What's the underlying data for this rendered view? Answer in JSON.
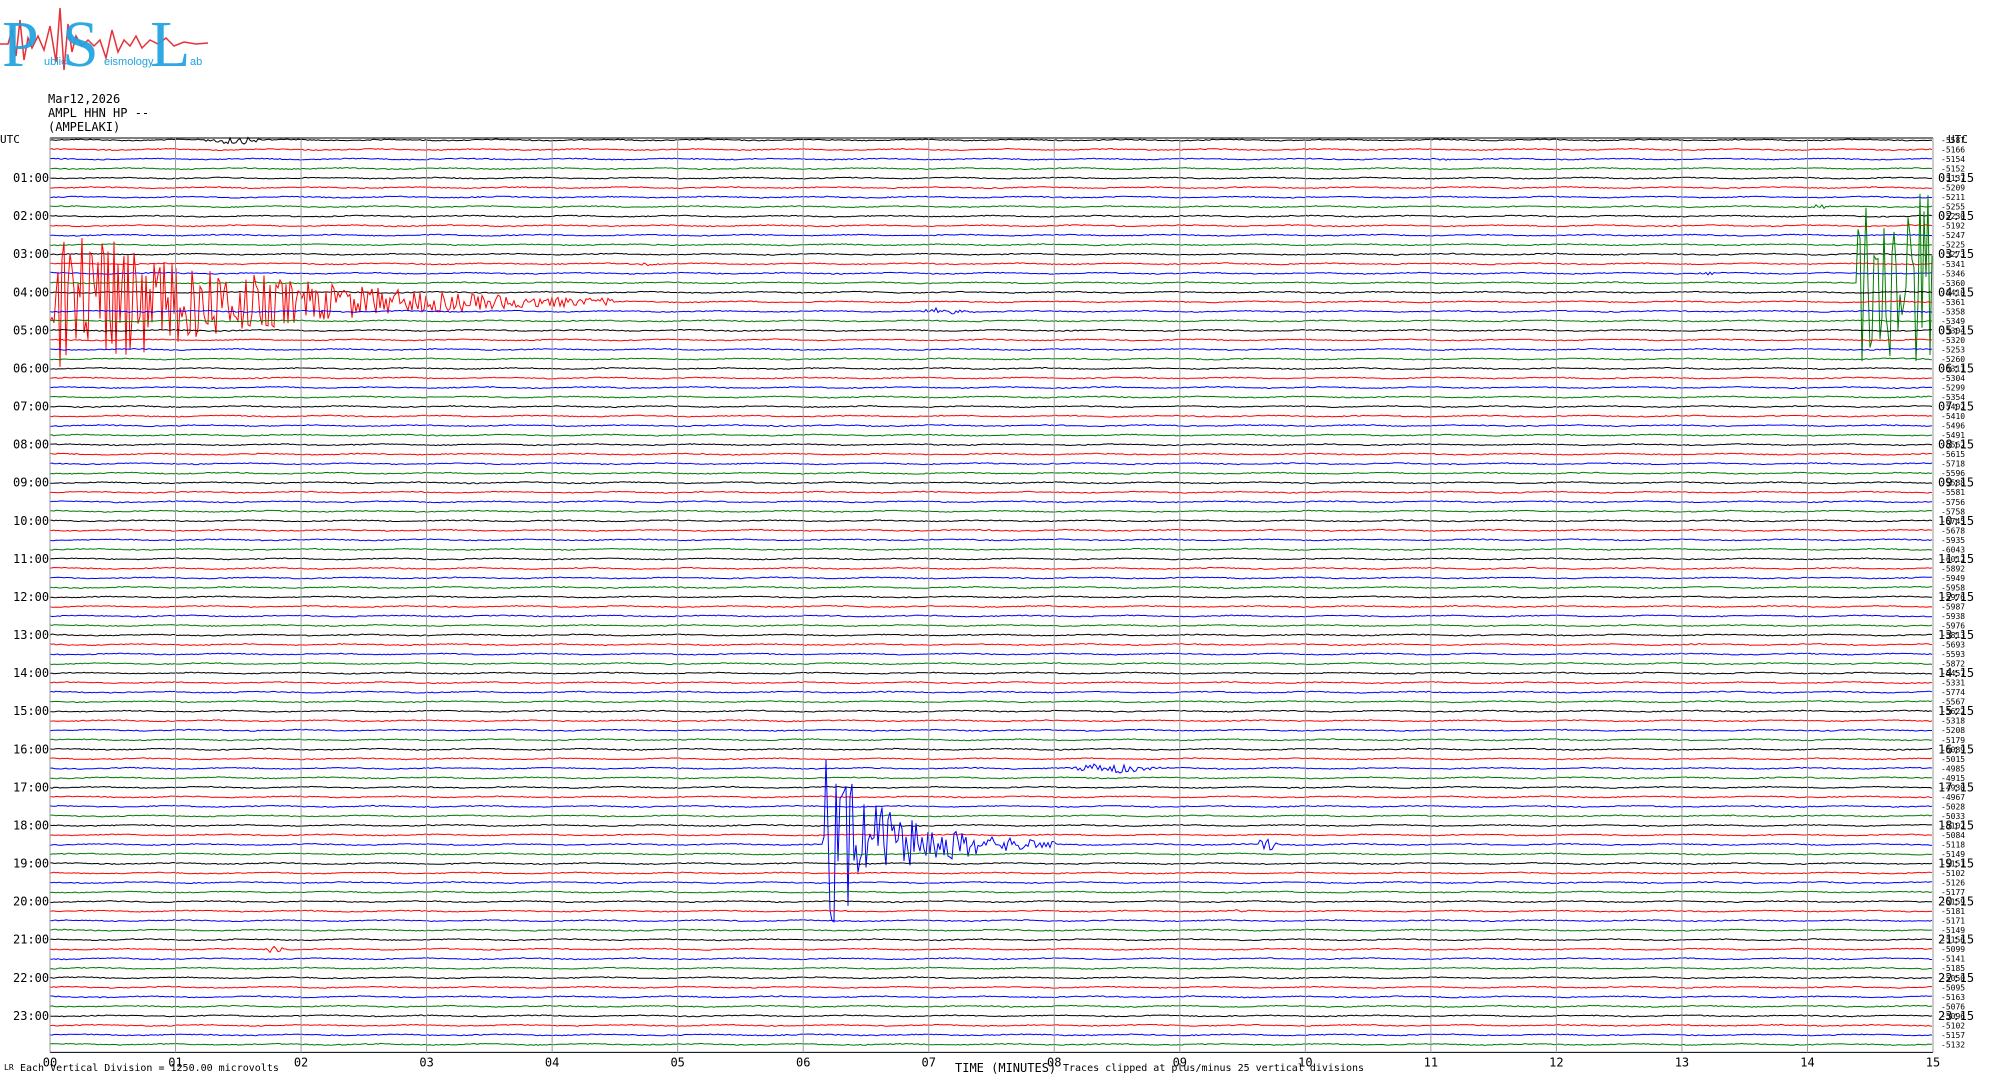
{
  "logo": {
    "big_letters": [
      "P",
      "S",
      "L"
    ],
    "small_words": [
      "ublic",
      "eismology",
      "ab"
    ],
    "colors": {
      "letters": "#1fa2e0",
      "wave": "#e8303a"
    }
  },
  "header": {
    "date": "Mar12,2026",
    "station": "AMPL HHN HP --",
    "site": "(AMPELAKI)"
  },
  "footer": {
    "scale_note": "Each Vertical Division = 1250.00 microvolts",
    "clip_note": "Traces clipped at plus/minus 25 vertical divisions",
    "corner_mark": "LR"
  },
  "chart_data": {
    "type": "line",
    "xlabel": "TIME (MINUTES)",
    "xlim": [
      0,
      15
    ],
    "x_ticks": [
      "00",
      "01",
      "02",
      "03",
      "04",
      "05",
      "06",
      "07",
      "08",
      "09",
      "10",
      "11",
      "12",
      "13",
      "14",
      "15"
    ],
    "left_axis_title": "UTC",
    "right_axis_title": "UTC",
    "left_hour_labels": [
      "01:00",
      "02:00",
      "03:00",
      "04:00",
      "05:00",
      "06:00",
      "07:00",
      "08:00",
      "09:00",
      "10:00",
      "11:00",
      "12:00",
      "13:00",
      "14:00",
      "15:00",
      "16:00",
      "17:00",
      "18:00",
      "19:00",
      "20:00",
      "21:00",
      "22:00",
      "23:00"
    ],
    "right_hour_labels": [
      "01:15",
      "02:15",
      "03:15",
      "04:15",
      "05:15",
      "06:15",
      "07:15",
      "08:15",
      "09:15",
      "10:15",
      "11:15",
      "12:15",
      "13:15",
      "14:15",
      "15:15",
      "16:15",
      "17:15",
      "18:15",
      "19:15",
      "20:15",
      "21:15",
      "22:15",
      "23:15"
    ],
    "trace_colors": [
      "#000000",
      "#ff0000",
      "#0000ff",
      "#007a00"
    ],
    "trace_offsets": [
      "-5587",
      "-5166",
      "-5154",
      "-5152",
      "-5137",
      "-5209",
      "-5211",
      "-5255",
      "-5230",
      "-5192",
      "-5247",
      "-5225",
      "-5273",
      "-5341",
      "-5346",
      "-5360",
      "-5410",
      "-5361",
      "-5358",
      "-5349",
      "-5304",
      "-5320",
      "-5253",
      "-5260",
      "-5311",
      "-5304",
      "-5299",
      "-5354",
      "-5402",
      "-5410",
      "-5496",
      "-5491",
      "-5562",
      "-5615",
      "-5718",
      "-5596",
      "-5588",
      "-5581",
      "-5756",
      "-5758",
      "-5745",
      "-5678",
      "-5935",
      "-6043",
      "-6012",
      "-5892",
      "-5949",
      "-5958",
      "-5976",
      "-5987",
      "-5938",
      "-5976",
      "-5813",
      "-5693",
      "-5593",
      "-5872",
      "-5457",
      "-5331",
      "-5774",
      "-5567",
      "-5622",
      "-5318",
      "-5208",
      "-5179",
      "-5089",
      "-5015",
      "-4985",
      "-4915",
      "-4930",
      "-4967",
      "-5028",
      "-5033",
      "-5102",
      "-5084",
      "-5118",
      "-5149",
      "-5151",
      "-5102",
      "-5126",
      "-5177",
      "-5159",
      "-5181",
      "-5171",
      "-5149",
      "-5156",
      "-5099",
      "-5141",
      "-5185",
      "-5050",
      "-5095",
      "-5163",
      "-5076",
      "-5096",
      "-5102",
      "-5157",
      "-5132"
    ],
    "events": [
      {
        "row": 0,
        "minute_start": 1.2,
        "minute_end": 2.0,
        "peak_divisions": 1.2,
        "kind": "local"
      },
      {
        "row": 2,
        "minute_start": 10.8,
        "minute_end": 11.5,
        "peak_divisions": 0.4,
        "kind": "local"
      },
      {
        "row": 7,
        "minute_start": 14.0,
        "minute_end": 14.3,
        "peak_divisions": 0.8,
        "kind": "local"
      },
      {
        "row": 13,
        "minute_start": 4.7,
        "minute_end": 5.0,
        "peak_divisions": 0.4,
        "kind": "local"
      },
      {
        "row": 14,
        "minute_start": 13.1,
        "minute_end": 13.5,
        "peak_divisions": 0.5,
        "kind": "local"
      },
      {
        "row": 18,
        "minute_start": 6.9,
        "minute_end": 7.6,
        "peak_divisions": 0.8,
        "kind": "local"
      },
      {
        "row": 17,
        "minute_start": 0.0,
        "minute_end": 4.5,
        "peak_divisions": 25,
        "kind": "teleseism",
        "clipped_rows": 50
      },
      {
        "row": 15,
        "minute_start": 14.4,
        "minute_end": 15.0,
        "peak_divisions": 25,
        "kind": "glitch",
        "clipped_rows": 50
      },
      {
        "row": 66,
        "minute_start": 8.1,
        "minute_end": 9.2,
        "peak_divisions": 1.5,
        "kind": "local"
      },
      {
        "row": 74,
        "minute_start": 6.15,
        "minute_end": 8.0,
        "peak_divisions": 25,
        "kind": "regional",
        "clipped_rows": 40
      },
      {
        "row": 74,
        "minute_start": 9.6,
        "minute_end": 9.9,
        "peak_divisions": 2,
        "kind": "local"
      },
      {
        "row": 81,
        "minute_start": 9.4,
        "minute_end": 9.7,
        "peak_divisions": 0.3,
        "kind": "local"
      },
      {
        "row": 85,
        "minute_start": 1.7,
        "minute_end": 2.0,
        "peak_divisions": 1,
        "kind": "local"
      },
      {
        "row": 89,
        "minute_start": 13.8,
        "minute_end": 14.0,
        "peak_divisions": 0.5,
        "kind": "local"
      }
    ]
  }
}
